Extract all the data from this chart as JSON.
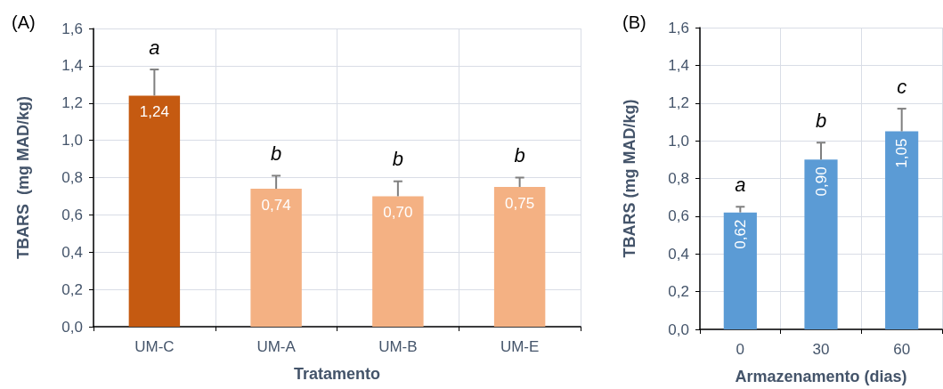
{
  "chart_data": [
    {
      "type": "bar",
      "title": "(A)",
      "xlabel": "Tratamento",
      "ylabel": "TBARS  (mg MAD/kg)",
      "categories": [
        "UM-C",
        "UM-A",
        "UM-B",
        "UM-E"
      ],
      "values": [
        1.24,
        0.74,
        0.7,
        0.75
      ],
      "colors": [
        "#c55a11",
        "#f4b183",
        "#f4b183",
        "#f4b183"
      ],
      "value_labels": [
        "1,24",
        "0,74",
        "0,70",
        "0,75"
      ],
      "errors": [
        0.14,
        0.07,
        0.08,
        0.05
      ],
      "ylim": [
        0,
        1.6
      ],
      "yticks": [
        {
          "value": 0,
          "label": "0,0"
        },
        {
          "value": 0.2,
          "label": "0,2"
        },
        {
          "value": 0.4,
          "label": "0,4"
        },
        {
          "value": 0.6,
          "label": "0,6"
        },
        {
          "value": 0.8,
          "label": "0,8"
        },
        {
          "value": 1.0,
          "label": "1,0"
        },
        {
          "value": 1.2,
          "label": "1,2"
        },
        {
          "value": 1.4,
          "label": "1,4"
        },
        {
          "value": 1.6,
          "label": "1,6"
        }
      ],
      "grid": true,
      "annotations": [
        "a",
        "b",
        "b",
        "b"
      ]
    },
    {
      "type": "bar",
      "title": "(B)",
      "xlabel": "Armazenamento (dias)",
      "ylabel": "TBARS (mg MAD/kg)",
      "categories": [
        "0",
        "30",
        "60"
      ],
      "values": [
        0.62,
        0.9,
        1.05
      ],
      "color": "#5b9bd5",
      "value_labels": [
        "0,62",
        "0,90",
        "1,05"
      ],
      "errors": [
        0.03,
        0.09,
        0.12
      ],
      "ylim": [
        0,
        1.6
      ],
      "yticks": [
        {
          "value": 0,
          "label": "0,0"
        },
        {
          "value": 0.2,
          "label": "0,2"
        },
        {
          "value": 0.4,
          "label": "0,4"
        },
        {
          "value": 0.6,
          "label": "0,6"
        },
        {
          "value": 0.8,
          "label": "0,8"
        },
        {
          "value": 1.0,
          "label": "1,0"
        },
        {
          "value": 1.2,
          "label": "1,2"
        },
        {
          "value": 1.4,
          "label": "1,4"
        },
        {
          "value": 1.6,
          "label": "1,6"
        }
      ],
      "grid": true,
      "annotations": [
        "a",
        "b",
        "c"
      ]
    }
  ]
}
